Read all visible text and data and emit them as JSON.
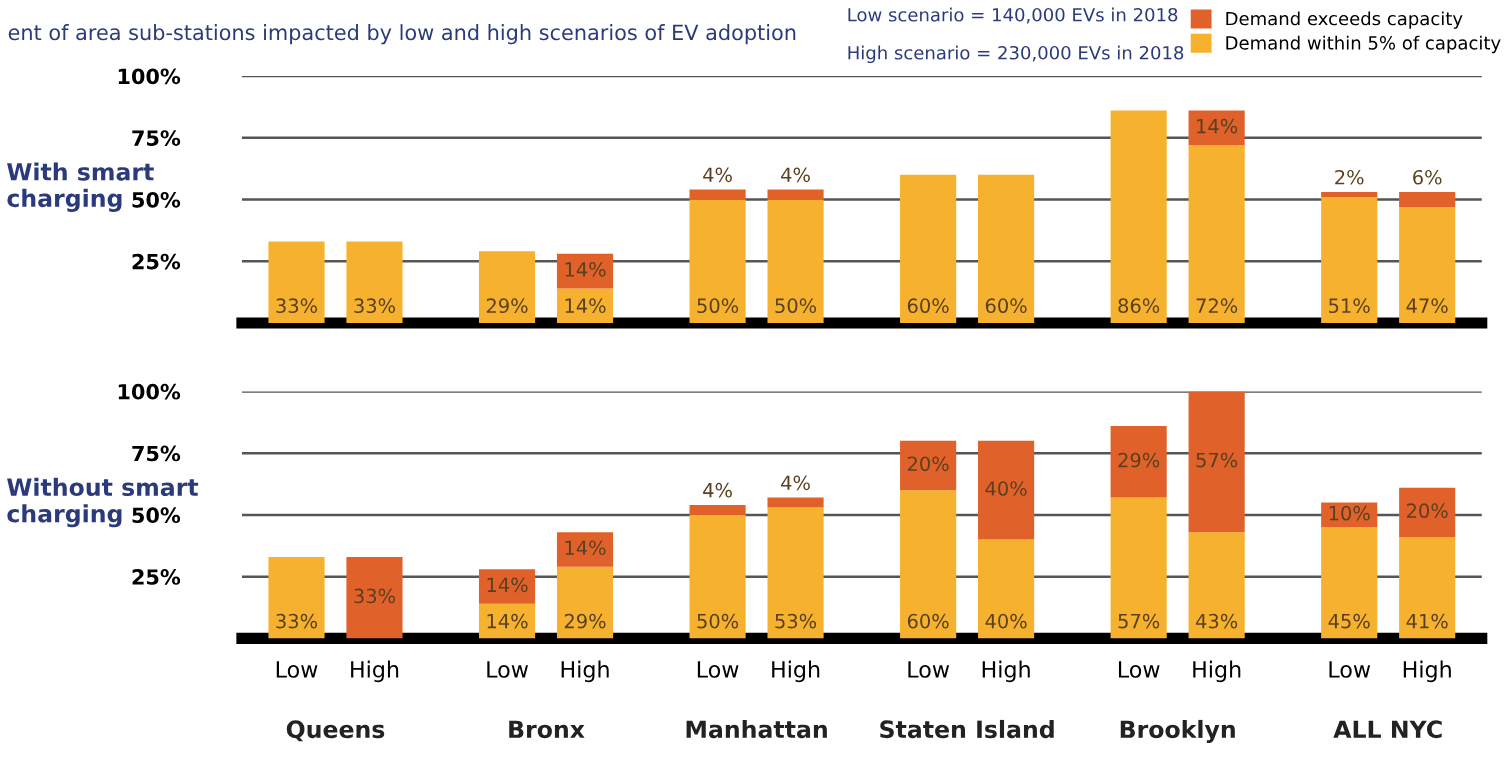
{
  "chart_data": [
    {
      "type": "bar",
      "stacked": true,
      "title": "ent of area sub-stations impacted by low and high scenarios of EV adoption",
      "ylabel": "With smart charging",
      "categories": [
        null,
        null,
        null,
        null,
        null,
        null,
        null,
        null,
        null,
        null,
        null,
        null
      ],
      "series": [
        {
          "name": "Demand within 5% of capacity",
          "color": "#f6b22e",
          "values": [
            33,
            33,
            29,
            14,
            50,
            50,
            60,
            60,
            86,
            72,
            51,
            47
          ],
          "value_labels": [
            "33%",
            "33%",
            "29%",
            "14%",
            "50%",
            "50%",
            "60%",
            "60%",
            "86%",
            "72%",
            "51%",
            "47%"
          ]
        },
        {
          "name": "Demand exceeds capacity",
          "color": "#e0622a",
          "values": [
            0,
            0,
            0,
            14,
            4,
            4,
            0,
            0,
            0,
            14,
            2,
            6
          ],
          "value_labels": [
            null,
            null,
            null,
            "14%",
            "4%",
            "4%",
            null,
            null,
            null,
            "14%",
            "2%",
            "6%"
          ]
        }
      ],
      "ylim": [
        0,
        100
      ],
      "yticks": [
        {
          "value": 25,
          "label": "25%"
        },
        {
          "value": 50,
          "label": "50%"
        },
        {
          "value": 75,
          "label": "75%"
        },
        {
          "value": 100,
          "label": "100%"
        }
      ],
      "grid": "y",
      "legend": "top right",
      "tick_labels": "y",
      "annotations": [
        "Low scenario = 140,000 EVs in 2018",
        "High scenario = 230,000 EVs in 2018"
      ]
    },
    {
      "type": "bar",
      "stacked": true,
      "ylabel": "Without smart charging",
      "categories": [
        "Low",
        "High",
        "Low",
        "High",
        "Low",
        "High",
        "Low",
        "High",
        "Low",
        "High",
        "Low",
        "High"
      ],
      "series": [
        {
          "color": "#f6b22e",
          "values": [
            33,
            0,
            14,
            29,
            50,
            53,
            60,
            40,
            57,
            43,
            45,
            41
          ],
          "value_labels": [
            "33%",
            null,
            "14%",
            "29%",
            "50%",
            "53%",
            "60%",
            "40%",
            "57%",
            "43%",
            "45%",
            "41%"
          ]
        },
        {
          "color": "#e0622a",
          "values": [
            0,
            33,
            14,
            14,
            4,
            4,
            20,
            40,
            29,
            57,
            10,
            20
          ],
          "value_labels": [
            null,
            "33%",
            "14%",
            "14%",
            "4%",
            "4%",
            "20%",
            "40%",
            "29%",
            "57%",
            "10%",
            "20%"
          ]
        }
      ],
      "ylim": [
        0,
        100
      ],
      "yticks": [
        {
          "value": 25,
          "label": "25%"
        },
        {
          "value": 50,
          "label": "50%"
        },
        {
          "value": 75,
          "label": "75%"
        },
        {
          "value": 100,
          "label": "100%"
        }
      ],
      "grid": "y",
      "annotations": [
        "Queens",
        "Bronx",
        "Manhattan",
        "Staten Island",
        "Brooklyn",
        "ALL NYC"
      ]
    }
  ]
}
